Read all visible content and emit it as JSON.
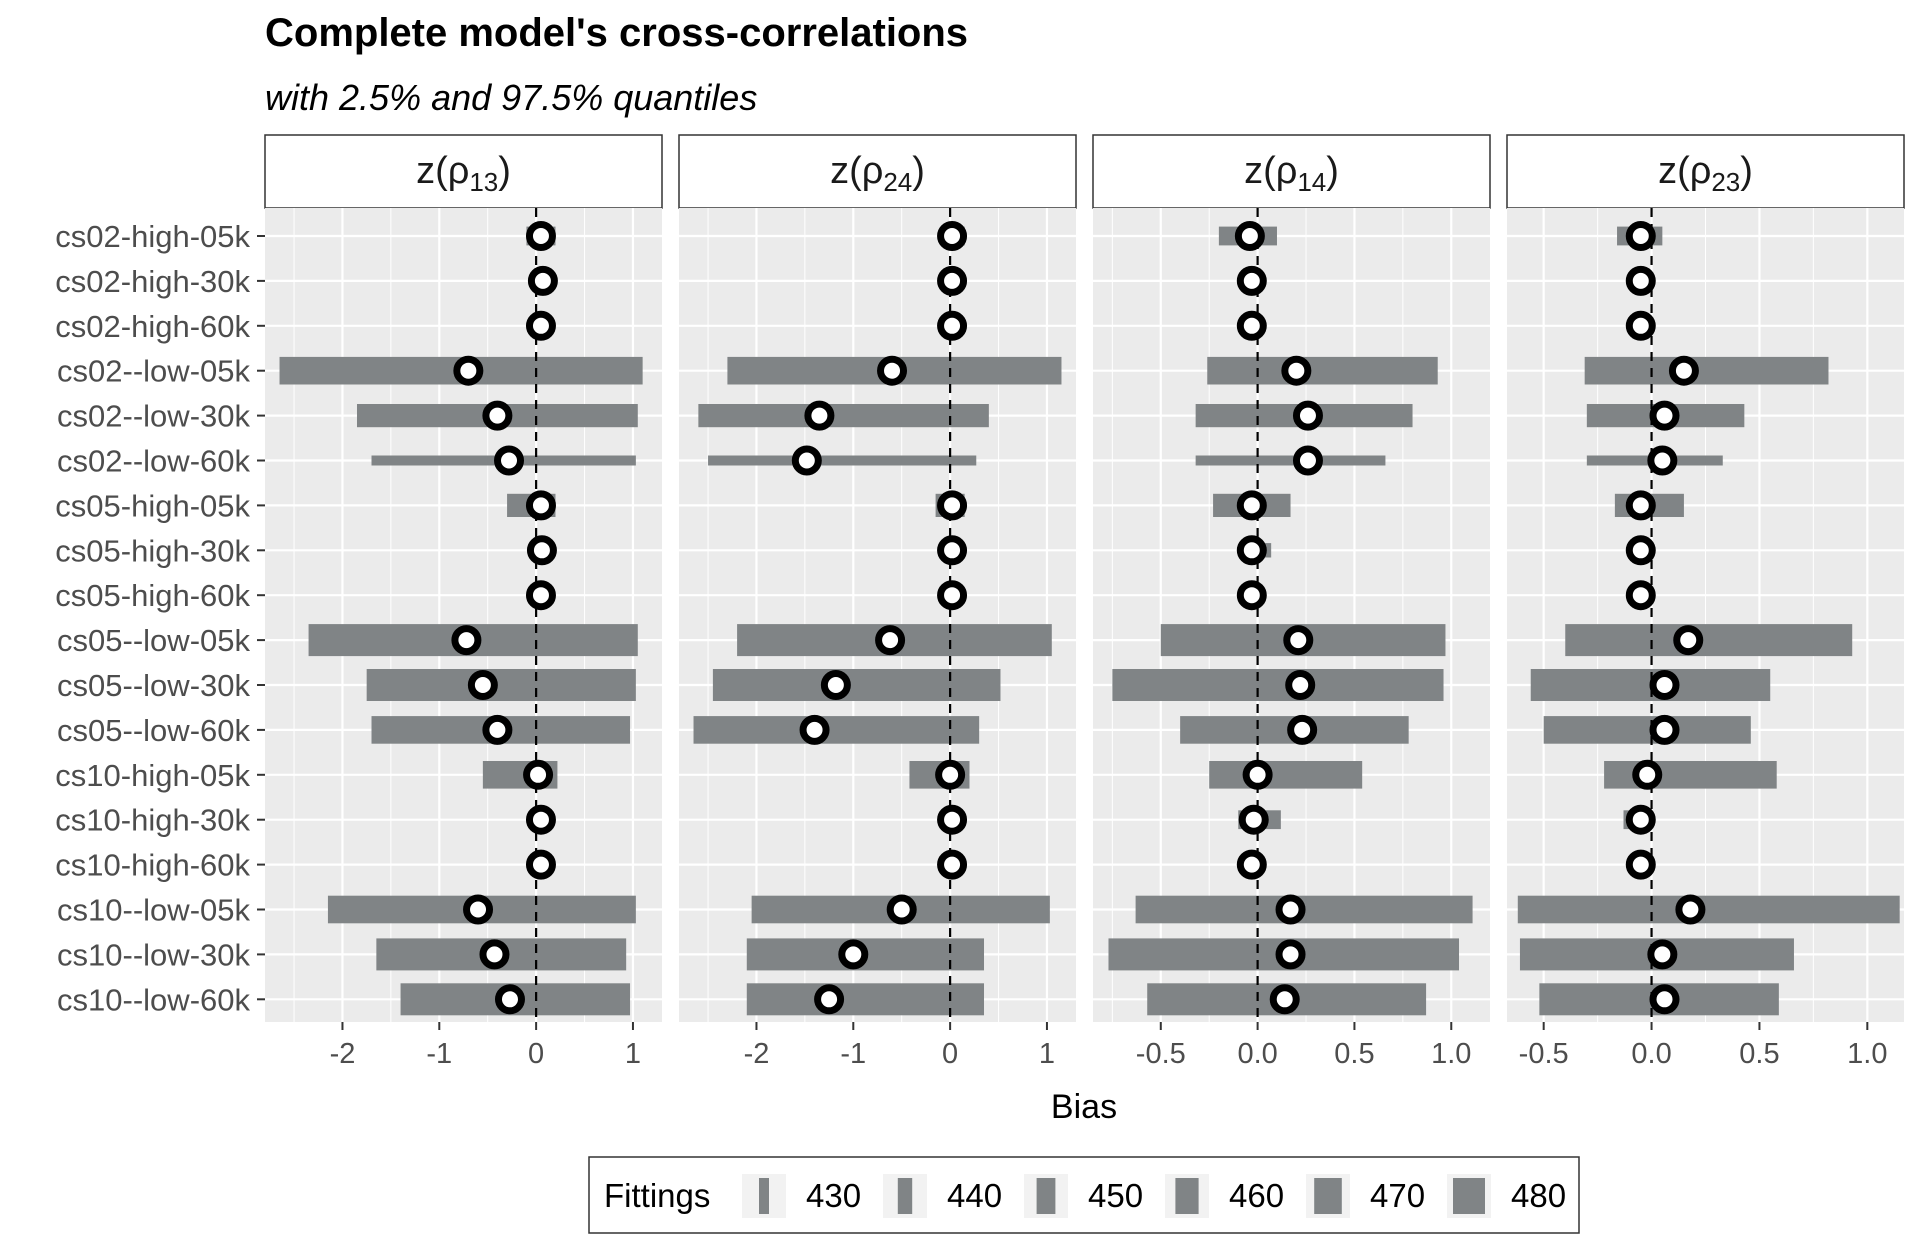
{
  "chart_data": {
    "type": "interval",
    "title": "Complete model's cross-correlations",
    "subtitle": "with 2.5% and 97.5% quantiles",
    "xlabel": "Bias",
    "legend": {
      "title": "Fittings",
      "position": "bottom",
      "entries": [
        "430",
        "440",
        "450",
        "460",
        "470",
        "480"
      ]
    },
    "categories": [
      "cs02-high-05k",
      "cs02-high-30k",
      "cs02-high-60k",
      "cs02--low-05k",
      "cs02--low-30k",
      "cs02--low-60k",
      "cs05-high-05k",
      "cs05-high-30k",
      "cs05-high-60k",
      "cs05--low-05k",
      "cs05--low-30k",
      "cs05--low-60k",
      "cs10-high-05k",
      "cs10-high-30k",
      "cs10-high-60k",
      "cs10--low-05k",
      "cs10--low-30k",
      "cs10--low-60k"
    ],
    "fittings": [
      450,
      430,
      430,
      470,
      460,
      430,
      460,
      440,
      430,
      480,
      480,
      470,
      470,
      450,
      430,
      470,
      480,
      480
    ],
    "panels": [
      {
        "label_base": "z(ρ",
        "label_sub": "13",
        "label_close": ")",
        "xlim": [
          -2.8,
          1.3
        ],
        "ticks": [
          -2,
          -1,
          0,
          1
        ],
        "tick_labels": [
          "-2",
          "-1",
          "0",
          "1"
        ],
        "lower": [
          -0.1,
          0.05,
          0.03,
          -2.65,
          -1.85,
          -1.7,
          -0.3,
          0.05,
          0.03,
          -2.35,
          -1.75,
          -1.7,
          -0.55,
          0.03,
          0.03,
          -2.15,
          -1.65,
          -1.4
        ],
        "upper": [
          0.2,
          0.12,
          0.1,
          1.1,
          1.05,
          1.03,
          0.2,
          0.12,
          0.08,
          1.05,
          1.03,
          0.97,
          0.22,
          0.1,
          0.08,
          1.03,
          0.93,
          0.97
        ],
        "point": [
          0.05,
          0.07,
          0.05,
          -0.7,
          -0.4,
          -0.28,
          0.05,
          0.06,
          0.05,
          -0.72,
          -0.55,
          -0.4,
          0.02,
          0.05,
          0.05,
          -0.6,
          -0.43,
          -0.27
        ]
      },
      {
        "label_base": "z(ρ",
        "label_sub": "24",
        "label_close": ")",
        "xlim": [
          -2.8,
          1.3
        ],
        "ticks": [
          -2,
          -1,
          0,
          1
        ],
        "tick_labels": [
          "-2",
          "-1",
          "0",
          "1"
        ],
        "lower": [
          -0.1,
          0.0,
          0.0,
          -2.3,
          -2.6,
          -2.5,
          -0.15,
          0.0,
          0.0,
          -2.2,
          -2.45,
          -2.65,
          -0.42,
          0.0,
          0.0,
          -2.05,
          -2.1,
          -2.1
        ],
        "upper": [
          0.15,
          0.12,
          0.1,
          1.15,
          0.4,
          0.27,
          0.15,
          0.1,
          0.08,
          1.05,
          0.52,
          0.3,
          0.2,
          0.1,
          0.08,
          1.03,
          0.35,
          0.35
        ],
        "point": [
          0.02,
          0.02,
          0.02,
          -0.6,
          -1.35,
          -1.48,
          0.02,
          0.02,
          0.02,
          -0.62,
          -1.18,
          -1.4,
          0.0,
          0.02,
          0.02,
          -0.5,
          -1.0,
          -1.25
        ]
      },
      {
        "label_base": "z(ρ",
        "label_sub": "14",
        "label_close": ")",
        "xlim": [
          -0.85,
          1.2
        ],
        "ticks": [
          -0.5,
          0.0,
          0.5,
          1.0
        ],
        "tick_labels": [
          "-0.5",
          "0.0",
          "0.5",
          "1.0"
        ],
        "lower": [
          -0.2,
          -0.06,
          -0.05,
          -0.26,
          -0.32,
          -0.32,
          -0.23,
          -0.06,
          -0.05,
          -0.5,
          -0.75,
          -0.4,
          -0.25,
          -0.1,
          -0.06,
          -0.63,
          -0.77,
          -0.57
        ],
        "upper": [
          0.1,
          0.03,
          0.03,
          0.93,
          0.8,
          0.66,
          0.17,
          0.07,
          0.04,
          0.97,
          0.96,
          0.78,
          0.54,
          0.12,
          0.04,
          1.11,
          1.04,
          0.87
        ],
        "point": [
          -0.04,
          -0.03,
          -0.03,
          0.2,
          0.26,
          0.26,
          -0.03,
          -0.03,
          -0.03,
          0.21,
          0.22,
          0.23,
          0.0,
          -0.02,
          -0.03,
          0.17,
          0.17,
          0.14
        ]
      },
      {
        "label_base": "z(ρ",
        "label_sub": "23",
        "label_close": ")",
        "xlim": [
          -0.67,
          1.17
        ],
        "ticks": [
          -0.5,
          0.0,
          0.5,
          1.0
        ],
        "tick_labels": [
          "-0.5",
          "0.0",
          "0.5",
          "1.0"
        ],
        "lower": [
          -0.16,
          -0.1,
          -0.09,
          -0.31,
          -0.3,
          -0.3,
          -0.17,
          -0.1,
          -0.09,
          -0.4,
          -0.56,
          -0.5,
          -0.22,
          -0.13,
          -0.09,
          -0.62,
          -0.61,
          -0.52
        ],
        "upper": [
          0.05,
          0.0,
          0.0,
          0.82,
          0.43,
          0.33,
          0.15,
          0.0,
          0.0,
          0.93,
          0.55,
          0.46,
          0.58,
          0.0,
          0.0,
          1.15,
          0.66,
          0.59
        ],
        "point": [
          -0.05,
          -0.05,
          -0.05,
          0.15,
          0.06,
          0.05,
          -0.05,
          -0.05,
          -0.05,
          0.17,
          0.06,
          0.06,
          -0.02,
          -0.05,
          -0.05,
          0.18,
          0.05,
          0.06
        ]
      }
    ],
    "colors": {
      "panel_background": "#ebebeb",
      "grid": "#ffffff",
      "interval": "#808486",
      "point_stroke": "#000000",
      "point_fill": "#ffffff",
      "reference_line": "#000000"
    },
    "reference_line": 0,
    "grid": true
  }
}
